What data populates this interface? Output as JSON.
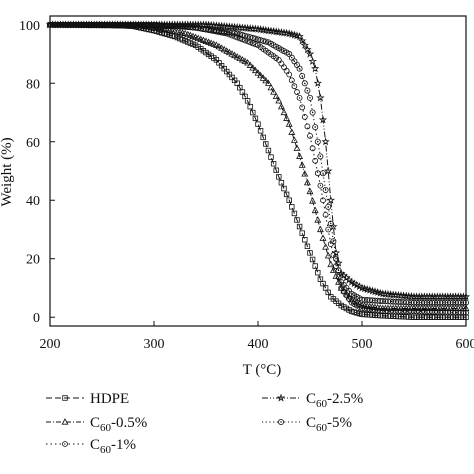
{
  "chart_data": {
    "type": "line",
    "xlabel": "T (°C)",
    "ylabel": "Weight (%)",
    "xlim": [
      200,
      600
    ],
    "ylim": [
      -3,
      103
    ],
    "xticks": [
      200,
      300,
      400,
      500,
      600
    ],
    "yticks": [
      0,
      20,
      40,
      60,
      80,
      100
    ],
    "legend_position": "bottom",
    "series": [
      {
        "name": "HDPE",
        "marker": "square",
        "x": [
          200,
          250,
          280,
          300,
          320,
          340,
          360,
          380,
          390,
          400,
          410,
          420,
          430,
          440,
          450,
          460,
          470,
          480,
          490,
          500,
          520,
          550,
          600
        ],
        "y": [
          100,
          100,
          99.5,
          98,
          96,
          93,
          88,
          80,
          74,
          66,
          57,
          48,
          40,
          31,
          22,
          13,
          7,
          4,
          2,
          1,
          0.5,
          0,
          0
        ]
      },
      {
        "name": "C60-0.5%",
        "marker": "triangle",
        "x": [
          200,
          280,
          300,
          330,
          360,
          390,
          410,
          420,
          430,
          440,
          450,
          460,
          470,
          480,
          490,
          500,
          520,
          550,
          600
        ],
        "y": [
          100,
          100,
          99,
          97,
          93,
          87,
          80,
          74,
          66,
          55,
          43,
          30,
          18,
          10,
          6,
          4,
          3,
          3,
          3
        ]
      },
      {
        "name": "C60-1%",
        "marker": "circle",
        "x": [
          200,
          300,
          340,
          370,
          400,
          420,
          430,
          440,
          450,
          460,
          470,
          480,
          490,
          500,
          520,
          550,
          600
        ],
        "y": [
          100,
          100,
          99,
          97,
          93,
          88,
          83,
          75,
          62,
          45,
          25,
          10,
          5,
          3,
          2,
          2,
          1.5
        ]
      },
      {
        "name": "C60-2.5%",
        "marker": "star",
        "x": [
          200,
          350,
          400,
          430,
          440,
          450,
          455,
          460,
          465,
          470,
          475,
          480,
          490,
          500,
          520,
          550,
          600
        ],
        "y": [
          100,
          100,
          98.5,
          97,
          96,
          90,
          85,
          75,
          60,
          40,
          22,
          15,
          12,
          10,
          8,
          7,
          7
        ]
      },
      {
        "name": "C60-5%",
        "marker": "circle-dot",
        "x": [
          200,
          330,
          380,
          410,
          430,
          440,
          450,
          460,
          470,
          475,
          480,
          490,
          500,
          520,
          550,
          600
        ],
        "y": [
          100,
          99.5,
          97,
          94,
          90,
          85,
          75,
          55,
          32,
          20,
          12,
          8,
          6,
          5.5,
          5,
          5
        ]
      }
    ]
  }
}
